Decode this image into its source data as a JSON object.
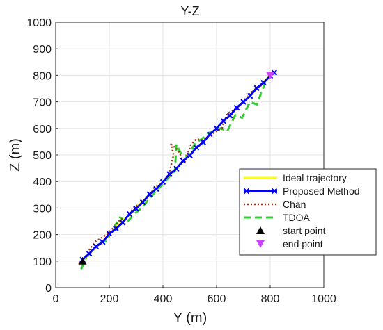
{
  "chart_data": {
    "type": "line",
    "title": "Y-Z",
    "xlabel": "Y (m)",
    "ylabel": "Z (m)",
    "xlim": [
      0,
      1000
    ],
    "ylim": [
      0,
      1000
    ],
    "xticks": [
      "0",
      "200",
      "400",
      "600",
      "800",
      "1000"
    ],
    "yticks": [
      "0",
      "100",
      "200",
      "300",
      "400",
      "500",
      "600",
      "700",
      "800",
      "900",
      "1000"
    ],
    "grid": true,
    "legend_position": "bottom-right",
    "series": [
      {
        "name": "Ideal trajectory",
        "color": "#ffff00",
        "style": "solid",
        "x": [
          100,
          800
        ],
        "y": [
          100,
          800
        ]
      },
      {
        "name": "Proposed Method",
        "color": "#0000ff",
        "style": "solid-x",
        "x": [
          100,
          125,
          150,
          175,
          200,
          225,
          250,
          275,
          300,
          325,
          350,
          375,
          400,
          425,
          450,
          475,
          500,
          525,
          550,
          575,
          600,
          625,
          650,
          675,
          700,
          725,
          750,
          775,
          800,
          815
        ],
        "y": [
          105,
          128,
          155,
          172,
          203,
          222,
          245,
          278,
          298,
          322,
          352,
          372,
          398,
          428,
          448,
          478,
          498,
          528,
          548,
          578,
          600,
          628,
          648,
          678,
          700,
          722,
          752,
          772,
          798,
          810
        ]
      },
      {
        "name": "Chan",
        "color": "#a0320f",
        "style": "dotted",
        "x": [
          85,
          110,
          130,
          150,
          175,
          200,
          220,
          240,
          265,
          290,
          320,
          345,
          370,
          395,
          420,
          440,
          430,
          455,
          480,
          505,
          525,
          550,
          575,
          600,
          620,
          640,
          665,
          690,
          715,
          740,
          765,
          790,
          805
        ],
        "y": [
          90,
          115,
          150,
          175,
          190,
          210,
          230,
          255,
          265,
          300,
          320,
          345,
          375,
          395,
          420,
          500,
          540,
          520,
          470,
          540,
          560,
          555,
          575,
          590,
          600,
          655,
          670,
          690,
          720,
          745,
          760,
          790,
          808
        ]
      },
      {
        "name": "TDOA",
        "color": "#32cd32",
        "style": "dashed",
        "x": [
          95,
          115,
          135,
          160,
          190,
          210,
          240,
          265,
          290,
          320,
          345,
          375,
          400,
          425,
          445,
          450,
          470,
          495,
          520,
          545,
          565,
          590,
          615,
          640,
          670,
          695,
          725,
          750,
          780,
          800
        ],
        "y": [
          70,
          115,
          130,
          170,
          175,
          215,
          265,
          245,
          275,
          300,
          330,
          365,
          390,
          420,
          440,
          540,
          500,
          495,
          545,
          560,
          580,
          590,
          600,
          590,
          650,
          640,
          700,
          690,
          770,
          800
        ]
      },
      {
        "name": "start point",
        "color": "#000000",
        "style": "marker-triangle-up",
        "x": [
          100
        ],
        "y": [
          100
        ]
      },
      {
        "name": "end point",
        "color": "#cc44ff",
        "style": "marker-triangle-down",
        "x": [
          800
        ],
        "y": [
          800
        ]
      }
    ]
  }
}
